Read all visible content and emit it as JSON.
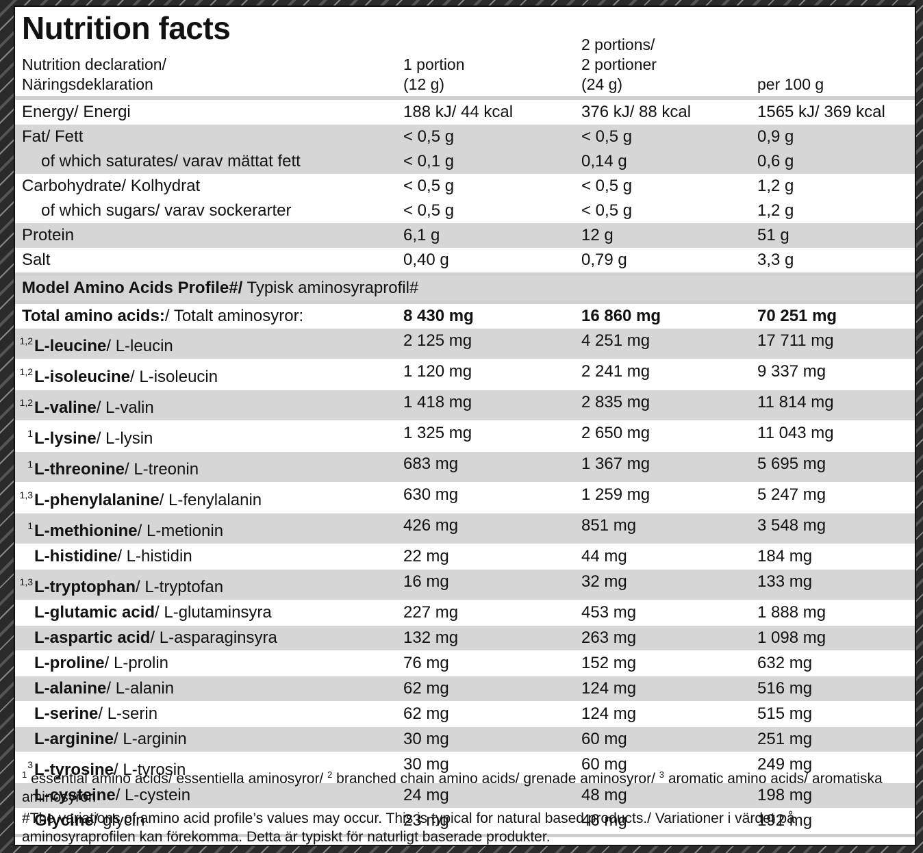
{
  "title": "Nutrition facts",
  "header": {
    "label": [
      "Nutrition declaration/",
      "Näringsdeklaration"
    ],
    "columns": [
      [
        "1 portion",
        "(12 g)"
      ],
      [
        "2 portions/",
        "2 portioner",
        "(24 g)"
      ],
      [
        "per 100 g"
      ]
    ]
  },
  "nutrients": [
    {
      "label": "Energy/ Energi",
      "values": [
        "188 kJ/ 44 kcal",
        "376 kJ/ 88 kcal",
        "1565 kJ/ 369 kcal"
      ]
    },
    {
      "label": "Fat/ Fett",
      "values": [
        "< 0,5 g",
        "< 0,5 g",
        "0,9 g"
      ],
      "sub": {
        "label": "of which saturates/ varav mättat fett",
        "values": [
          "< 0,1 g",
          "0,14 g",
          "0,6 g"
        ]
      }
    },
    {
      "label": "Carbohydrate/ Kolhydrat",
      "values": [
        "< 0,5 g",
        "< 0,5 g",
        "1,2 g"
      ],
      "sub": {
        "label": "of which sugars/ varav sockerarter",
        "values": [
          "< 0,5 g",
          "< 0,5 g",
          "1,2 g"
        ]
      }
    },
    {
      "label": "Protein",
      "values": [
        "6,1 g",
        "12 g",
        "51 g"
      ]
    },
    {
      "label": "Salt",
      "values": [
        "0,40 g",
        "0,79 g",
        "3,3 g"
      ]
    }
  ],
  "amino_heading": {
    "name": "Model Amino Acids Profile#/",
    "rest": " Typisk aminosyraprofil#"
  },
  "total": {
    "name": "Total amino acids:",
    "rest": "/ Totalt aminosyror:",
    "values": [
      "8 430 mg",
      "16 860 mg",
      "70 251 mg"
    ]
  },
  "amino_acids": [
    {
      "sup": "1,2",
      "name": "L-leucine",
      "rest": "/ L-leucin",
      "values": [
        "2 125 mg",
        "4 251 mg",
        "17 711 mg"
      ]
    },
    {
      "sup": "1,2",
      "name": "L-isoleucine",
      "rest": "/ L-isoleucin",
      "values": [
        "1 120 mg",
        "2 241 mg",
        "9 337 mg"
      ]
    },
    {
      "sup": "1,2",
      "name": "L-valine",
      "rest": "/ L-valin",
      "values": [
        "1 418 mg",
        "2 835 mg",
        "11 814 mg"
      ]
    },
    {
      "sup": "1",
      "name": "L-lysine",
      "rest": "/ L-lysin",
      "values": [
        "1 325 mg",
        "2 650 mg",
        "11 043 mg"
      ]
    },
    {
      "sup": "1",
      "name": "L-threonine",
      "rest": "/ L-treonin",
      "values": [
        "683 mg",
        "1 367 mg",
        "5 695 mg"
      ]
    },
    {
      "sup": "1,3",
      "name": "L-phenylalanine",
      "rest": "/ L-fenylalanin",
      "values": [
        "630 mg",
        "1 259 mg",
        "5 247 mg"
      ]
    },
    {
      "sup": "1",
      "name": "L-methionine",
      "rest": "/ L-metionin",
      "values": [
        "426 mg",
        "851 mg",
        "3 548 mg"
      ]
    },
    {
      "name": "L-histidine",
      "rest": "/ L-histidin",
      "values": [
        "22 mg",
        "44 mg",
        "184 mg"
      ]
    },
    {
      "sup": "1,3",
      "name": "L-tryptophan",
      "rest": "/ L-tryptofan",
      "values": [
        "16 mg",
        "32 mg",
        "133 mg"
      ]
    },
    {
      "name": "L-glutamic acid",
      "rest": "/ L-glutaminsyra",
      "values": [
        "227 mg",
        "453 mg",
        "1 888 mg"
      ]
    },
    {
      "name": "L-aspartic acid",
      "rest": "/ L-asparaginsyra",
      "values": [
        "132 mg",
        "263 mg",
        "1 098 mg"
      ]
    },
    {
      "name": "L-proline",
      "rest": "/ L-prolin",
      "values": [
        "76 mg",
        "152 mg",
        "632 mg"
      ]
    },
    {
      "name": "L-alanine",
      "rest": "/ L-alanin",
      "values": [
        "62 mg",
        "124 mg",
        "516 mg"
      ]
    },
    {
      "name": "L-serine",
      "rest": "/ L-serin",
      "values": [
        "62 mg",
        "124 mg",
        "515 mg"
      ]
    },
    {
      "name": "L-arginine",
      "rest": "/ L-arginin",
      "values": [
        "30 mg",
        "60 mg",
        "251 mg"
      ]
    },
    {
      "sup": "3",
      "name": "L-tyrosine",
      "rest": "/ L-tyrosin",
      "values": [
        "30 mg",
        "60 mg",
        "249 mg"
      ]
    },
    {
      "name": "L-cysteine",
      "rest": "/ L-cystein",
      "values": [
        "24 mg",
        "48 mg",
        "198 mg"
      ]
    },
    {
      "name": "Glycine",
      "rest": "/ glycin",
      "values": [
        "23 mg",
        "46 mg",
        "192 mg"
      ]
    }
  ],
  "footnotes": [
    {
      "sup": "1",
      "text": " essential amino acids/ essentiella aminosyror/ "
    },
    {
      "sup": "2",
      "text": " branched chain amino acids/ grenade aminosyror/ "
    },
    {
      "sup": "3",
      "text": " aromatic amino acids/ aromatiska aminosyror."
    }
  ],
  "note": "#The variations of amino acid profile’s values may occur. This is typical for natural based products./ Variationer i värdet på aminosyraprofilen kan förekomma. Detta är typiskt för naturligt baserade produkter."
}
